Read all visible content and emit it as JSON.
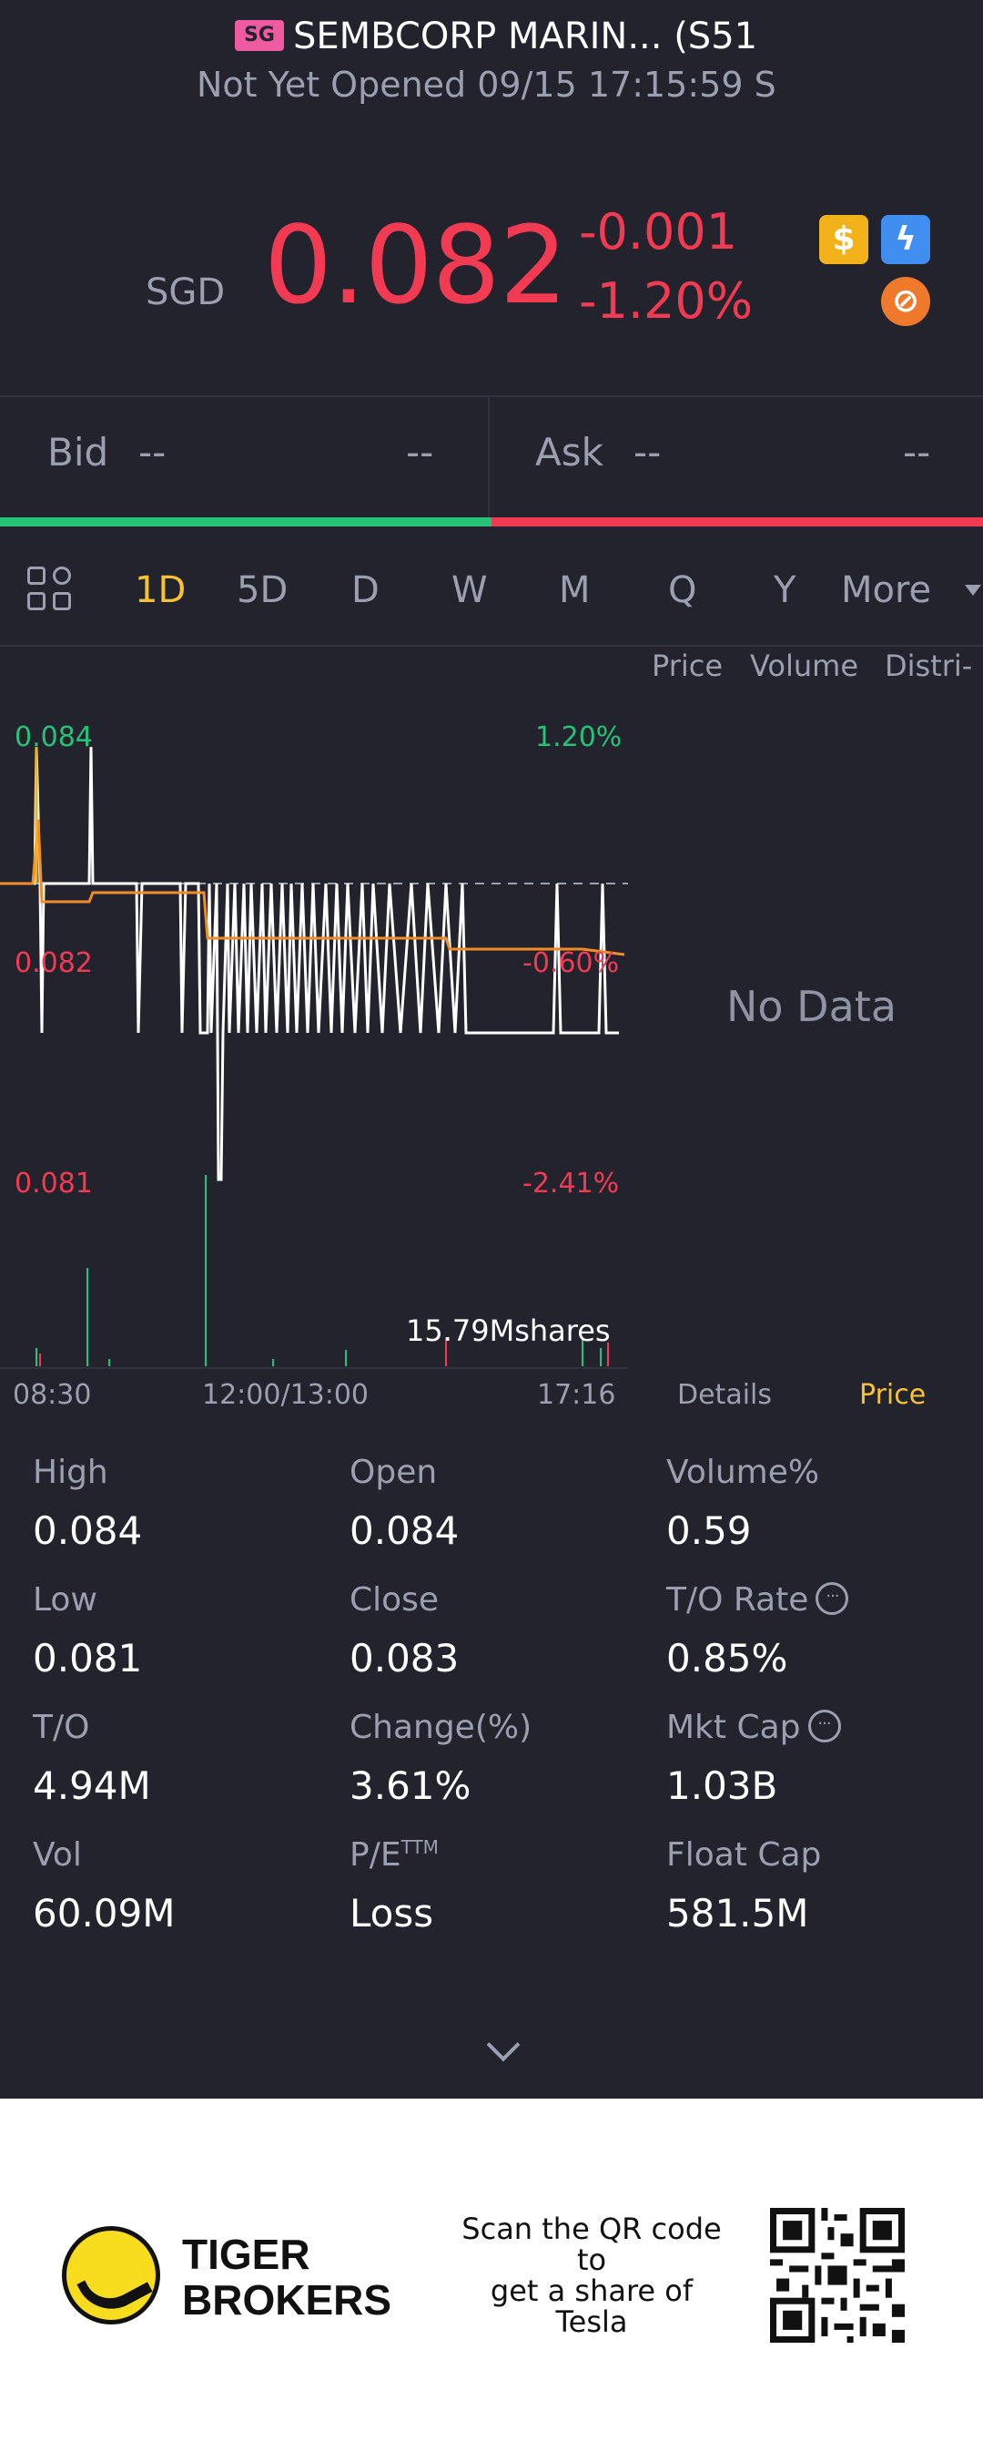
{
  "header": {
    "market_badge": "SG",
    "title": "SEMBCORP MARIN... (S51",
    "subtitle": "Not Yet Opened 09/15 17:15:59 S"
  },
  "quote": {
    "currency": "SGD",
    "price": "0.082",
    "change": "-0.001",
    "change_pct": "-1.20%",
    "up_color": "#26c277",
    "down_color": "#f23b53",
    "icons": [
      "dollar-icon",
      "flash-icon",
      "margin-icon"
    ]
  },
  "bid_ask": {
    "bid_label": "Bid",
    "bid_price": "--",
    "bid_size": "--",
    "ask_label": "Ask",
    "ask_price": "--",
    "ask_size": "--"
  },
  "tabs": {
    "items": [
      "1D",
      "5D",
      "D",
      "W",
      "M",
      "Q",
      "Y",
      "More"
    ],
    "active": "1D",
    "accent": "#f7c331"
  },
  "side_panel": {
    "tabs": [
      "Price",
      "Volume",
      "Distri-"
    ],
    "empty_text": "No Data",
    "bottom_tabs": [
      "Details",
      "Price"
    ],
    "bottom_active": "Price"
  },
  "chart": {
    "price_high": "0.084",
    "price_mid": "0.082",
    "price_low": "0.081",
    "pct_high": "1.20%",
    "pct_mid": "-0.60%",
    "pct_low": "-2.41%",
    "volume_label": "15.79Mshares",
    "time_start": "08:30",
    "time_mid": "12:00/13:00",
    "time_end": "17:16"
  },
  "stats": [
    {
      "label": "High",
      "value": "0.084"
    },
    {
      "label": "Open",
      "value": "0.084"
    },
    {
      "label": "Volume%",
      "value": "0.59"
    },
    {
      "label": "Low",
      "value": "0.081"
    },
    {
      "label": "Close",
      "value": "0.083"
    },
    {
      "label": "T/O Rate",
      "value": "0.85%"
    },
    {
      "label": "T/O",
      "value": "4.94M"
    },
    {
      "label": "Change(%)",
      "value": "3.61%"
    },
    {
      "label": "Mkt Cap",
      "value": "1.03B"
    },
    {
      "label": "Vol",
      "value": "60.09M"
    },
    {
      "label": "P/E",
      "label_sup": "TTM",
      "value": "Loss"
    },
    {
      "label": "Float Cap",
      "value": "581.5M"
    }
  ],
  "footer": {
    "brand_line1": "TIGER",
    "brand_line2": "BROKERS",
    "scan_text": "Scan the QR code\nto\nget a share of\nTesla"
  }
}
